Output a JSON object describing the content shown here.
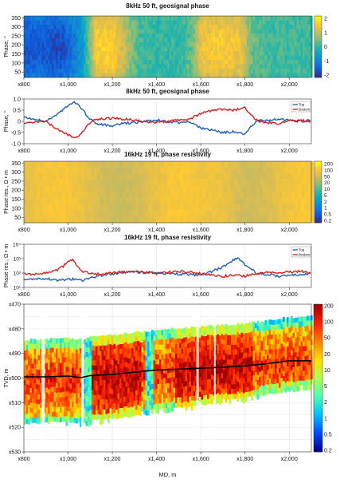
{
  "chart_data": [
    {
      "type": "heatmap",
      "title": "8kHz 50 ft, geosignal phase",
      "ylabel": "Phase, °",
      "xlim": [
        800,
        2100
      ],
      "ylim": [
        20,
        360
      ],
      "xticks": [
        "x800",
        "x1,000",
        "x1,200",
        "x1,400",
        "x1,600",
        "x1,800",
        "x2,000"
      ],
      "yticks": [
        "350",
        "300",
        "250",
        "200",
        "150",
        "100",
        "50"
      ],
      "colorbar": {
        "min": -2,
        "max": 2,
        "ticks": [
          "2",
          "1",
          "0",
          "-1",
          "-2"
        ]
      },
      "colormap": [
        "#352a87",
        "#0f5cdd",
        "#1481d6",
        "#06a4ca",
        "#2eb7a4",
        "#87bf77",
        "#d1bb59",
        "#fec832",
        "#f9fb0e"
      ],
      "segments": [
        [
          800,
          -1.6
        ],
        [
          860,
          -1.5
        ],
        [
          960,
          -1.7
        ],
        [
          1020,
          -1.2
        ],
        [
          1060,
          -0.6
        ],
        [
          1090,
          0.3
        ],
        [
          1120,
          1.5
        ],
        [
          1200,
          1.6
        ],
        [
          1260,
          0.8
        ],
        [
          1320,
          0.1
        ],
        [
          1400,
          0
        ],
        [
          1500,
          0
        ],
        [
          1560,
          0.4
        ],
        [
          1600,
          1.4
        ],
        [
          1700,
          1.5
        ],
        [
          1780,
          1.3
        ],
        [
          1820,
          0.4
        ],
        [
          1900,
          0.1
        ],
        [
          2000,
          0.1
        ],
        [
          2100,
          0.1
        ]
      ]
    },
    {
      "type": "line",
      "title": "8kHz 50 ft, geosignal phase",
      "ylabel": "Phase, °",
      "xlim": [
        800,
        2100
      ],
      "ylim": [
        -1,
        1
      ],
      "xticks": [
        "x800",
        "x1,000",
        "x1,200",
        "x1,400",
        "x1,600",
        "x1,800",
        "x2,000"
      ],
      "yticks": [
        "1.0",
        "0.5",
        "0",
        "-0.5",
        "-1.0"
      ],
      "legend": "top-right",
      "series": [
        {
          "name": "Top",
          "color": "#1f5fb4",
          "x": [
            800,
            850,
            900,
            950,
            1000,
            1030,
            1060,
            1090,
            1120,
            1150,
            1200,
            1250,
            1300,
            1350,
            1400,
            1450,
            1500,
            1550,
            1600,
            1650,
            1700,
            1750,
            1800,
            1850,
            1900,
            1950,
            2000,
            2050,
            2100
          ],
          "y": [
            0.15,
            0.1,
            0.0,
            0.3,
            0.7,
            0.85,
            0.6,
            0.2,
            -0.05,
            -0.15,
            -0.2,
            -0.1,
            -0.05,
            0.0,
            0.05,
            0.0,
            -0.05,
            0.0,
            -0.3,
            -0.4,
            -0.5,
            -0.45,
            -0.55,
            0.0,
            0.05,
            0.1,
            0.05,
            0.0,
            0.05
          ]
        },
        {
          "name": "Bottom",
          "color": "#d62020",
          "x": [
            800,
            850,
            900,
            950,
            1000,
            1030,
            1060,
            1090,
            1120,
            1150,
            1200,
            1250,
            1300,
            1350,
            1400,
            1450,
            1500,
            1550,
            1600,
            1650,
            1700,
            1750,
            1800,
            1850,
            1900,
            1950,
            2000,
            2050,
            2100
          ],
          "y": [
            -0.1,
            -0.05,
            0.0,
            -0.35,
            -0.6,
            -0.75,
            -0.55,
            -0.15,
            0.05,
            0.1,
            0.15,
            0.1,
            0.05,
            0.0,
            -0.05,
            0.0,
            0.05,
            0.1,
            0.35,
            0.5,
            0.55,
            0.5,
            0.6,
            0.05,
            -0.05,
            -0.1,
            0.0,
            0.05,
            0.0
          ]
        }
      ]
    },
    {
      "type": "heatmap",
      "title": "16kHz 19 ft, phase resistivity",
      "ylabel": "Phase res., Ω • m",
      "xlim": [
        800,
        2100
      ],
      "ylim": [
        20,
        360
      ],
      "xticks": [
        "x800",
        "x1,000",
        "x1,200",
        "x1,400",
        "x1,600",
        "x1,800",
        "x2,000"
      ],
      "yticks": [
        "350",
        "300",
        "250",
        "200",
        "150",
        "100",
        "50"
      ],
      "colorbar": {
        "min": 0.2,
        "max": 200,
        "ticks": [
          "200",
          "100",
          "50",
          "20",
          "10",
          "5",
          "2",
          "1",
          "0.5",
          "0.2"
        ]
      },
      "colormap": [
        "#352a87",
        "#0f5cdd",
        "#1481d6",
        "#06a4ca",
        "#2eb7a4",
        "#87bf77",
        "#d1bb59",
        "#fec832",
        "#f9fb0e"
      ]
    },
    {
      "type": "line",
      "title": "16kHz 19 ft, phase resistivity",
      "ylabel": "Phase res., Ω • m",
      "xlim": [
        800,
        2100
      ],
      "yscale": "log",
      "ylim": [
        10,
        10000
      ],
      "xticks": [
        "x800",
        "x1,000",
        "x1,200",
        "x1,400",
        "x1,600",
        "x1,800",
        "x2,000"
      ],
      "yticks": [
        "10⁴",
        "10³",
        "10²",
        "10¹"
      ],
      "legend": "top-right",
      "series": [
        {
          "name": "Top",
          "color": "#1f5fb4",
          "x": [
            800,
            850,
            900,
            950,
            1000,
            1030,
            1060,
            1100,
            1150,
            1200,
            1250,
            1300,
            1350,
            1400,
            1450,
            1500,
            1550,
            1600,
            1650,
            1700,
            1730,
            1750,
            1770,
            1790,
            1800,
            1850,
            1900,
            1950,
            2000,
            2050,
            2100
          ],
          "y": [
            40,
            35,
            40,
            30,
            35,
            40,
            30,
            45,
            70,
            90,
            110,
            120,
            110,
            100,
            90,
            85,
            80,
            70,
            120,
            250,
            500,
            900,
            1000,
            700,
            300,
            100,
            80,
            60,
            70,
            80,
            90
          ]
        },
        {
          "name": "Bottom",
          "color": "#d62020",
          "x": [
            800,
            850,
            900,
            950,
            980,
            1000,
            1020,
            1040,
            1060,
            1100,
            1150,
            1200,
            1250,
            1300,
            1350,
            1400,
            1450,
            1500,
            1550,
            1600,
            1650,
            1700,
            1750,
            1800,
            1850,
            1900,
            1950,
            2000,
            2050,
            2100
          ],
          "y": [
            90,
            80,
            100,
            150,
            300,
            700,
            900,
            300,
            120,
            100,
            80,
            100,
            120,
            130,
            110,
            90,
            110,
            130,
            120,
            90,
            70,
            60,
            70,
            60,
            90,
            110,
            100,
            120,
            130,
            110
          ]
        }
      ]
    },
    {
      "type": "heatmap",
      "xlabel": "MD, m",
      "ylabel": "TVD, m",
      "xlim": [
        800,
        2100
      ],
      "ylim": [
        470,
        530
      ],
      "xticks": [
        "x800",
        "x1,000",
        "x1,200",
        "x1,400",
        "x1,600",
        "x1,800",
        "x2,000"
      ],
      "yticks": [
        "x470",
        "x480",
        "x490",
        "x500",
        "x510",
        "x520",
        "x530"
      ],
      "colorbar": {
        "min": 0.2,
        "max": 200,
        "ticks": [
          "200",
          "100",
          "50",
          "20",
          "10",
          "5",
          "2",
          "1",
          "0.5",
          "0.2"
        ]
      },
      "colormap": [
        "#00008f",
        "#0050ff",
        "#00c0ff",
        "#50ffb0",
        "#b0ff50",
        "#ffe000",
        "#ff8000",
        "#ff2000",
        "#a00000"
      ],
      "trajectory": {
        "name": "well path",
        "x": [
          800,
          900,
          1000,
          1060,
          1100,
          1200,
          1300,
          1400,
          1500,
          1600,
          1700,
          1800,
          1900,
          2000,
          2100
        ],
        "y": [
          499.5,
          499.5,
          499.2,
          499.8,
          499.0,
          498.5,
          497.6,
          496.8,
          496.4,
          496.0,
          495.6,
          495.0,
          494.2,
          493.0,
          493.0
        ]
      }
    }
  ]
}
